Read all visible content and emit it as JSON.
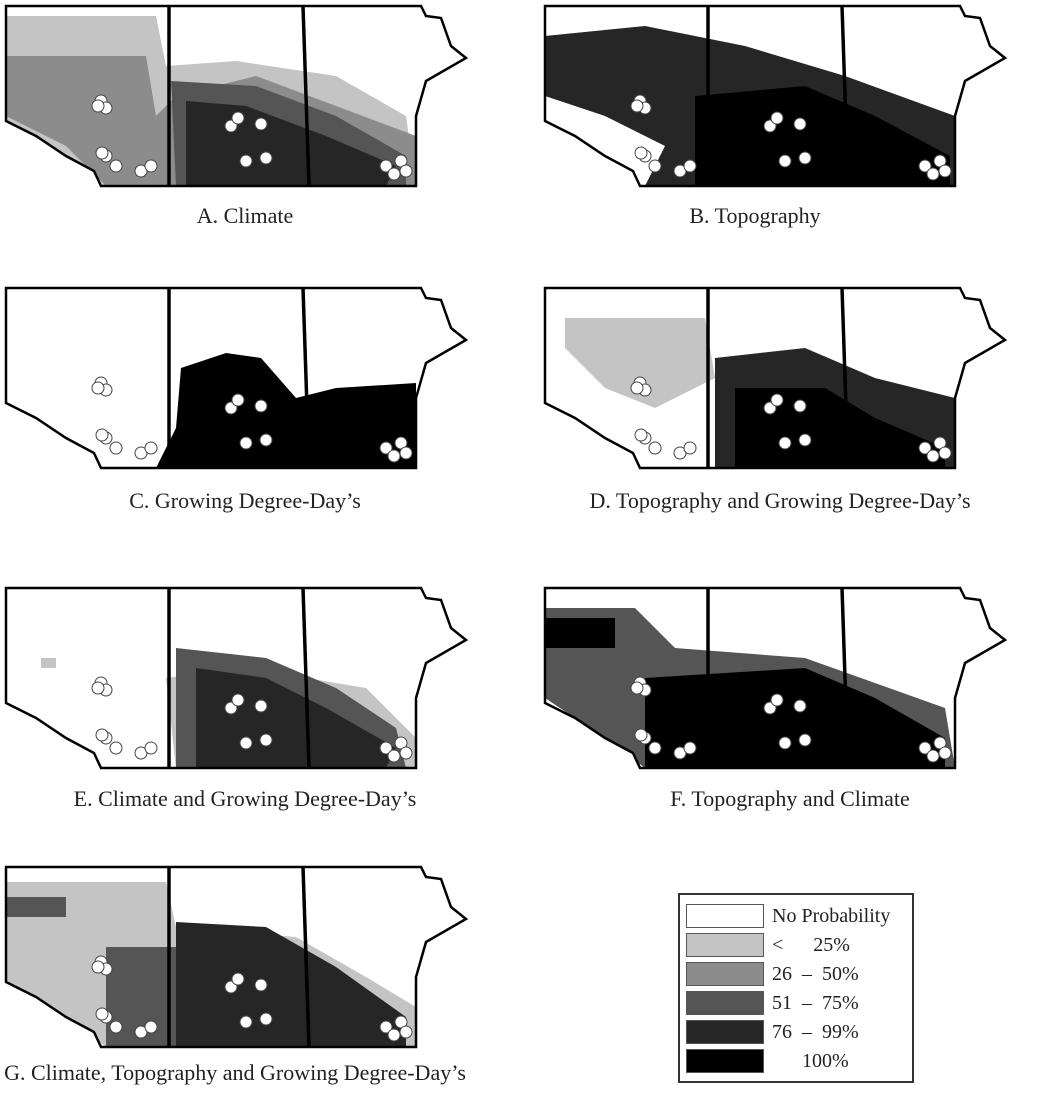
{
  "panels": [
    {
      "caption": "A. Climate"
    },
    {
      "caption": "B. Topography"
    },
    {
      "caption": "C. Growing Degree-Day’s"
    },
    {
      "caption": "D. Topography and Growing Degree-Day’s"
    },
    {
      "caption": "E. Climate and Growing Degree-Day’s"
    },
    {
      "caption": "F. Topography and Climate"
    },
    {
      "caption": "G. Climate, Topography and Growing Degree-Day’s"
    }
  ],
  "legend": {
    "items": [
      {
        "label": "No Probability",
        "color": "#ffffff"
      },
      {
        "label": "<      25%",
        "color": "#c4c4c4"
      },
      {
        "label": "26  –  50%",
        "color": "#8c8c8c"
      },
      {
        "label": "51  –  75%",
        "color": "#555555"
      },
      {
        "label": "76  –  99%",
        "color": "#262626"
      },
      {
        "label": "      100%",
        "color": "#000000"
      }
    ]
  }
}
